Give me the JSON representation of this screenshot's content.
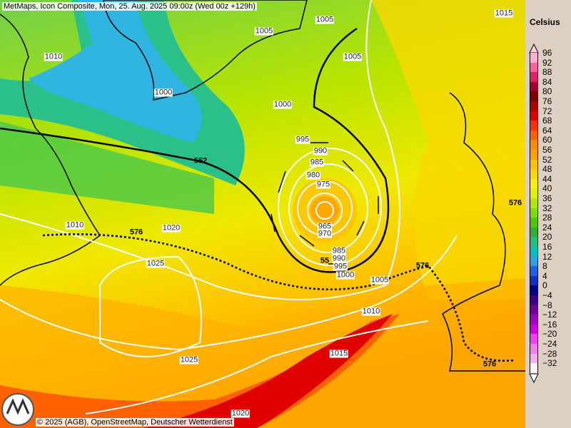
{
  "header": {
    "title": "MetMaps, Icon Composite, Mon, 25. Aug. 2025 09:00z (Wed 00z +129h)"
  },
  "legend": {
    "unit": "Celsius",
    "levels": [
      {
        "label": "96",
        "color": "#ffb0d0"
      },
      {
        "label": "92",
        "color": "#ff60a0"
      },
      {
        "label": "88",
        "color": "#e0206a"
      },
      {
        "label": "84",
        "color": "#a00030"
      },
      {
        "label": "80",
        "color": "#800000"
      },
      {
        "label": "76",
        "color": "#b00000"
      },
      {
        "label": "72",
        "color": "#e00000"
      },
      {
        "label": "68",
        "color": "#ff3000"
      },
      {
        "label": "64",
        "color": "#ff6000"
      },
      {
        "label": "60",
        "color": "#ff8c00"
      },
      {
        "label": "56",
        "color": "#ffa000"
      },
      {
        "label": "52",
        "color": "#ffc000"
      },
      {
        "label": "48",
        "color": "#ffd800"
      },
      {
        "label": "44",
        "color": "#fff000"
      },
      {
        "label": "40",
        "color": "#e0f000"
      },
      {
        "label": "36",
        "color": "#b0e800"
      },
      {
        "label": "32",
        "color": "#80dc00"
      },
      {
        "label": "28",
        "color": "#50c800"
      },
      {
        "label": "24",
        "color": "#30b030"
      },
      {
        "label": "20",
        "color": "#20c080"
      },
      {
        "label": "16",
        "color": "#00c0c0"
      },
      {
        "label": "12",
        "color": "#30a0e0"
      },
      {
        "label": "8",
        "color": "#2060e0"
      },
      {
        "label": "4",
        "color": "#1030c0"
      },
      {
        "label": "0",
        "color": "#000090"
      },
      {
        "label": "−4",
        "color": "#400080"
      },
      {
        "label": "−8",
        "color": "#7000a0"
      },
      {
        "label": "−12",
        "color": "#a000c0"
      },
      {
        "label": "−16",
        "color": "#d000e0"
      },
      {
        "label": "−20",
        "color": "#f040f0"
      },
      {
        "label": "−24",
        "color": "#f080f0"
      },
      {
        "label": "−28",
        "color": "#f0b0f0"
      },
      {
        "label": "−32",
        "color": "#fff0ff"
      }
    ]
  },
  "isobar_labels": [
    "1005",
    "1015",
    "1005",
    "1010",
    "1005",
    "1000",
    "1000",
    "995",
    "990",
    "985",
    "980",
    "975",
    "965",
    "970",
    "985",
    "990",
    "995",
    "1000",
    "1005",
    "1010",
    "1015",
    "1025",
    "1025",
    "1020",
    "1020",
    "1010"
  ],
  "thickness_labels": [
    "552",
    "576",
    "576",
    "576",
    "576",
    "55"
  ],
  "footer": {
    "copyright": "© 2025 (AGB), OpenStreetMap, Deutscher Wetterdienst"
  }
}
